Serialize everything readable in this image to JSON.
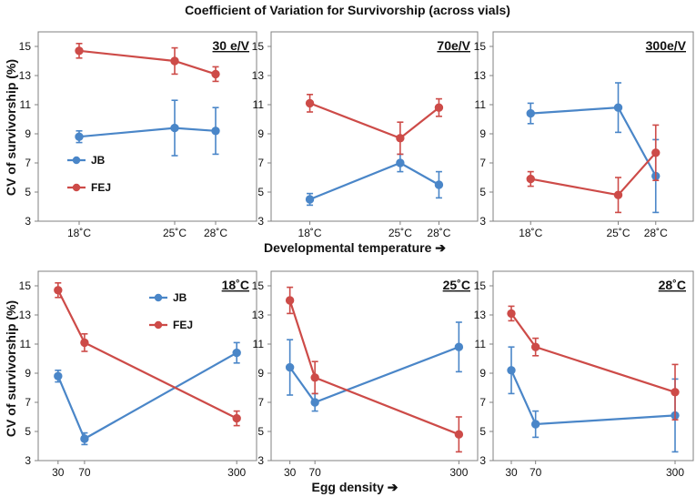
{
  "figure_title": "Coefficient of Variation for Survivorship (across vials)",
  "top_row_xlabel": "Developmental temperature ➔",
  "bottom_row_xlabel": "Egg density ➔",
  "y_axis_label": "CV of survivorship (%)",
  "colors": {
    "JB": "#4a86c8",
    "FEJ": "#cd4b48",
    "axis": "#808080"
  },
  "chart_data": [
    {
      "type": "line",
      "panel_label": "30 e/V",
      "xlabel": "Developmental temperature",
      "ylabel": "CV of survivorship (%)",
      "x": [
        18,
        25,
        28
      ],
      "x_tick_labels": [
        "18˚C",
        "25˚C",
        "28˚C"
      ],
      "xlim": [
        15,
        31
      ],
      "ylim": [
        3,
        16
      ],
      "y_ticks": [
        "3",
        "5",
        "7",
        "9",
        "11",
        "13",
        "15"
      ],
      "legend": {
        "position": "lower-left",
        "entries": [
          "JB",
          "FEJ"
        ]
      },
      "series": [
        {
          "name": "JB",
          "values": [
            8.8,
            9.4,
            9.2
          ],
          "errors": [
            0.4,
            1.9,
            1.6
          ]
        },
        {
          "name": "FEJ",
          "values": [
            14.7,
            14.0,
            13.1
          ],
          "errors": [
            0.5,
            0.9,
            0.5
          ]
        }
      ]
    },
    {
      "type": "line",
      "panel_label": "70e/V",
      "xlabel": "Developmental temperature",
      "x": [
        18,
        25,
        28
      ],
      "x_tick_labels": [
        "18˚C",
        "25˚C",
        "28˚C"
      ],
      "xlim": [
        15,
        31
      ],
      "ylim": [
        3,
        16
      ],
      "y_ticks": [
        "3",
        "5",
        "7",
        "9",
        "11",
        "13",
        "15"
      ],
      "series": [
        {
          "name": "JB",
          "values": [
            4.5,
            7.0,
            5.5
          ],
          "errors": [
            0.4,
            0.6,
            0.9
          ]
        },
        {
          "name": "FEJ",
          "values": [
            11.1,
            8.7,
            10.8
          ],
          "errors": [
            0.6,
            1.1,
            0.6
          ]
        }
      ]
    },
    {
      "type": "line",
      "panel_label": "300e/V",
      "xlabel": "Developmental temperature",
      "x": [
        18,
        25,
        28
      ],
      "x_tick_labels": [
        "18˚C",
        "25˚C",
        "28˚C"
      ],
      "xlim": [
        15,
        31
      ],
      "ylim": [
        3,
        16
      ],
      "y_ticks": [
        "3",
        "5",
        "7",
        "9",
        "11",
        "13",
        "15"
      ],
      "series": [
        {
          "name": "JB",
          "values": [
            10.4,
            10.8,
            6.1
          ],
          "errors": [
            0.7,
            1.7,
            2.5
          ]
        },
        {
          "name": "FEJ",
          "values": [
            5.9,
            4.8,
            7.7
          ],
          "errors": [
            0.5,
            1.2,
            1.9
          ]
        }
      ]
    },
    {
      "type": "line",
      "panel_label": "18˚C",
      "xlabel": "Egg density",
      "ylabel": "CV of survivorship (%)",
      "x": [
        30,
        70,
        300
      ],
      "x_tick_labels": [
        "30",
        "70",
        "300"
      ],
      "xlim": [
        0,
        330
      ],
      "ylim": [
        3,
        16
      ],
      "y_ticks": [
        "3",
        "5",
        "7",
        "9",
        "11",
        "13",
        "15"
      ],
      "legend": {
        "position": "top-center",
        "entries": [
          "JB",
          "FEJ"
        ]
      },
      "series": [
        {
          "name": "JB",
          "values": [
            8.8,
            4.5,
            10.4
          ],
          "errors": [
            0.4,
            0.4,
            0.7
          ]
        },
        {
          "name": "FEJ",
          "values": [
            14.7,
            11.1,
            5.9
          ],
          "errors": [
            0.5,
            0.6,
            0.5
          ]
        }
      ]
    },
    {
      "type": "line",
      "panel_label": "25˚C",
      "xlabel": "Egg density",
      "x": [
        30,
        70,
        300
      ],
      "x_tick_labels": [
        "30",
        "70",
        "300"
      ],
      "xlim": [
        0,
        330
      ],
      "ylim": [
        3,
        16
      ],
      "y_ticks": [
        "3",
        "5",
        "7",
        "9",
        "11",
        "13",
        "15"
      ],
      "series": [
        {
          "name": "JB",
          "values": [
            9.4,
            7.0,
            10.8
          ],
          "errors": [
            1.9,
            0.6,
            1.7
          ]
        },
        {
          "name": "FEJ",
          "values": [
            14.0,
            8.7,
            4.8
          ],
          "errors": [
            0.9,
            1.1,
            1.2
          ]
        }
      ]
    },
    {
      "type": "line",
      "panel_label": "28˚C",
      "xlabel": "Egg density",
      "x": [
        30,
        70,
        300
      ],
      "x_tick_labels": [
        "30",
        "70",
        "300"
      ],
      "xlim": [
        0,
        330
      ],
      "ylim": [
        3,
        16
      ],
      "y_ticks": [
        "3",
        "5",
        "7",
        "9",
        "11",
        "13",
        "15"
      ],
      "series": [
        {
          "name": "JB",
          "values": [
            9.2,
            5.5,
            6.1
          ],
          "errors": [
            1.6,
            0.9,
            2.5
          ]
        },
        {
          "name": "FEJ",
          "values": [
            13.1,
            10.8,
            7.7
          ],
          "errors": [
            0.5,
            0.6,
            1.9
          ]
        }
      ]
    }
  ]
}
